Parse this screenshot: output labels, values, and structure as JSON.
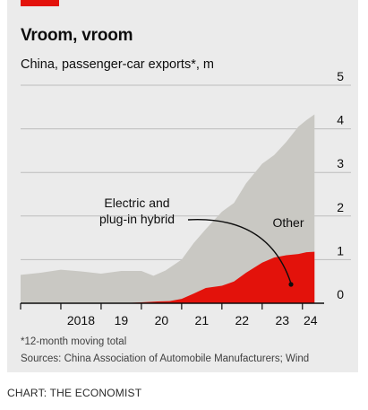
{
  "title": "Vroom, vroom",
  "subtitle": "China, passenger-car exports*, m",
  "footnote": "*12-month moving total",
  "source": "Sources: China Association of Automobile Manufacturers; Wind",
  "credit": "CHART: THE ECONOMIST",
  "colors": {
    "total": "#c9c8c3",
    "electric": "#e3120b",
    "grid": "#bdbdbd",
    "brand_red": "#e3120b"
  },
  "chart_data": {
    "type": "area",
    "title": "Vroom, vroom",
    "subtitle": "China, passenger-car exports*, m",
    "ylim": [
      0,
      5
    ],
    "xlim": [
      2017.0,
      2024.45
    ],
    "y_ticks": [
      "0",
      "1",
      "2",
      "3",
      "4",
      "5"
    ],
    "x_tick_labels": [
      "2018",
      "19",
      "20",
      "21",
      "22",
      "23",
      "24"
    ],
    "x_tick_positions": [
      2018.5,
      2019.5,
      2020.5,
      2021.5,
      2022.5,
      2023.5,
      2024.2
    ],
    "grid": true,
    "annotations": [
      {
        "id": "electric",
        "lines": [
          "Electric and",
          "plug-in hybrid"
        ]
      },
      {
        "id": "other",
        "lines": [
          "Other"
        ]
      }
    ],
    "series": [
      {
        "name": "Other",
        "x": [
          2017.0,
          2017.5,
          2018.0,
          2018.5,
          2019.0,
          2019.5,
          2020.0,
          2020.3,
          2020.6,
          2021.0,
          2021.3,
          2021.6,
          2022.0,
          2022.3,
          2022.6,
          2023.0,
          2023.3,
          2023.6,
          2023.9,
          2024.1,
          2024.3
        ],
        "values": [
          0.65,
          0.7,
          0.77,
          0.73,
          0.68,
          0.74,
          0.74,
          0.63,
          0.75,
          1.0,
          1.38,
          1.7,
          2.1,
          2.3,
          2.75,
          3.2,
          3.4,
          3.7,
          4.05,
          4.2,
          4.33
        ]
      },
      {
        "name": "Electric and plug-in hybrid",
        "x": [
          2017.0,
          2019.5,
          2020.0,
          2020.4,
          2020.7,
          2021.0,
          2021.3,
          2021.6,
          2022.0,
          2022.3,
          2022.6,
          2023.0,
          2023.3,
          2023.6,
          2023.9,
          2024.1,
          2024.3
        ],
        "values": [
          0.0,
          0.0,
          0.02,
          0.04,
          0.05,
          0.1,
          0.22,
          0.35,
          0.4,
          0.5,
          0.7,
          0.93,
          1.05,
          1.1,
          1.13,
          1.17,
          1.18
        ]
      }
    ]
  }
}
